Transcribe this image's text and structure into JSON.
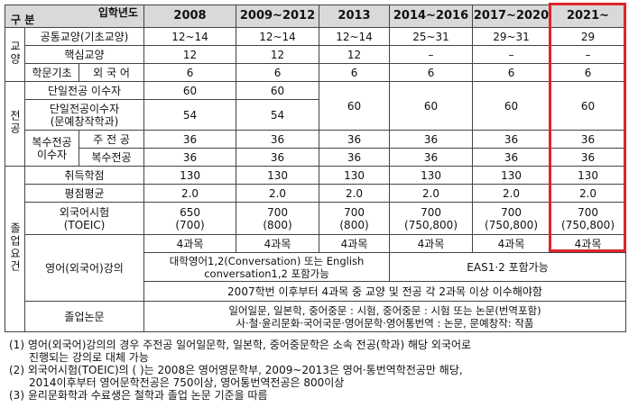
{
  "header": {
    "corner_year": "입학년도",
    "corner_div": "구 분",
    "years": [
      "2008",
      "2009~2012",
      "2013",
      "2014~2016",
      "2017~2020",
      "2021~"
    ]
  },
  "groups": {
    "general": "교양",
    "major": "전공",
    "grad": "졸업요건"
  },
  "rows": {
    "gen_core_label": "공통교양(기초교양)",
    "gen_core": [
      "12~14",
      "12~14",
      "12~14",
      "25~31",
      "29~31",
      "29"
    ],
    "gen_key_label": "핵심교양",
    "gen_key": [
      "12",
      "12",
      "12",
      "–",
      "–",
      "–"
    ],
    "gen_basic_label": "학문기초",
    "gen_basic_sub": "외 국 어",
    "gen_basic": [
      "6",
      "6",
      "6",
      "6",
      "6",
      "6"
    ],
    "single_label": "단일전공 이수자",
    "single": [
      "60",
      "60"
    ],
    "single_merged": [
      "60",
      "60",
      "60",
      "60"
    ],
    "single2_label": "단일전공이수자\n(문예창작학과)",
    "single2": [
      "54",
      "54"
    ],
    "double_label": "복수전공\n이수자",
    "double_main_label": "주 전 공",
    "double_main": [
      "36",
      "36",
      "36",
      "36",
      "36",
      "36"
    ],
    "double_sub_label": "복수전공",
    "double_sub": [
      "36",
      "36",
      "36",
      "36",
      "36",
      "36"
    ],
    "credits_label": "취득학점",
    "credits": [
      "130",
      "130",
      "130",
      "130",
      "130",
      "130"
    ],
    "gpa_label": "평점평균",
    "gpa": [
      "2.0",
      "2.0",
      "2.0",
      "2.0",
      "2.0",
      "2.0"
    ],
    "toeic_label": "외국어시험\n(TOEIC)",
    "toeic": [
      "650\n(700)",
      "700\n(800)",
      "700\n(800)",
      "700\n(750,800)",
      "700\n(750,800)",
      "700\n(750,800)"
    ],
    "eng_label": "영어(외국어)강의",
    "eng_count": [
      "4과목",
      "4과목",
      "4과목",
      "4과목",
      "4과목",
      "4과목"
    ],
    "eng_note_left": "대학영어1,2(Conversation) 또는 English\nconversation1,2 포함가능",
    "eng_note_right": "EAS1·2 포함가능",
    "eng_footer": "2007학번 이후부터 4과목 중 교양 및 전공 각 2과목 이상 이수해야함",
    "thesis_label": "졸업논문",
    "thesis_text": "일어일문, 일본학, 중어중문 : 시험, 중어중문 : 시험 또는 논문(번역포함)\n사·철·윤리문화·국어국문·영어문학·영어통번역 : 논문,   문예창작: 작품"
  },
  "notes": [
    "(1) 영어(외국어)강의의 경우 주전공 일어일문학, 일본학, 중어중문학은 소속 전공(학과) 해당 외국어로",
    "진행되는 강의로 대체 가능",
    "(2) 외국어시험(TOEIC)의 ( )는 2008은 영어영문학부, 2009~2013은 영어·통번역학전공만 해당,",
    "2014이후부터 영어문학전공은 750이상, 영어통번역전공은 800이상",
    "(3) 윤리문화학과 수료생은 철학과 졸업 논문 기준을 따름"
  ],
  "colors": {
    "highlight": "#e0242b",
    "header_bg": "#d9d9d9"
  }
}
